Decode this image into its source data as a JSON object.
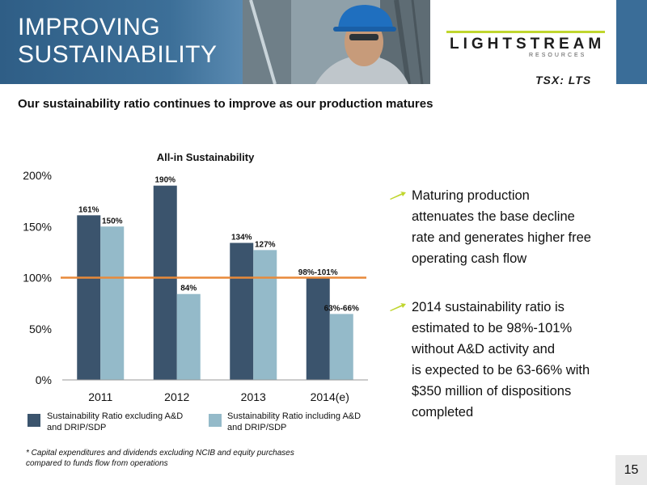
{
  "header": {
    "title_line1": "IMPROVING",
    "title_line2": "SUSTAINABILITY",
    "logo_name": "LIGHTSTREAM",
    "logo_sub": "RESOURCES",
    "ticker": "TSX: LTS"
  },
  "subtitle": "Our sustainability ratio continues to improve as our production matures",
  "chart_data": {
    "type": "bar",
    "title": "All-in Sustainability",
    "categories": [
      "2011",
      "2012",
      "2013",
      "2014(e)"
    ],
    "series": [
      {
        "name": "Sustainability  Ratio excluding A&D and DRIP/SDP",
        "values": [
          161,
          190,
          134,
          99.5
        ],
        "labels": [
          "161%",
          "190%",
          "134%",
          "98%-101%"
        ],
        "color": "#3b546d"
      },
      {
        "name": "Sustainability Ratio including A&D and DRIP/SDP",
        "values": [
          150,
          84,
          127,
          64.5
        ],
        "labels": [
          "150%",
          "84%",
          "127%",
          "63%-66%"
        ],
        "color": "#94bac9"
      }
    ],
    "reference_line": {
      "value": 100,
      "color": "#e8893a"
    },
    "yticks": [
      "0%",
      "50%",
      "100%",
      "150%",
      "200%"
    ],
    "ylim": [
      0,
      200
    ],
    "legend_position": "bottom",
    "grid": false
  },
  "legend": {
    "item1": "Sustainability  Ratio excluding A&D\nand DRIP/SDP",
    "item2": "Sustainability Ratio including A&D\nand DRIP/SDP"
  },
  "bullets": [
    {
      "icon": "arrow-bullet-icon",
      "text": "Maturing production\nattenuates the base decline\nrate and generates higher free\noperating cash flow"
    },
    {
      "icon": "arrow-bullet-icon",
      "text": "2014 sustainability ratio is\nestimated to be 98%-101%\nwithout  A&D activity and\nis expected to be 63-66% with\n$350 million of dispositions\ncompleted"
    }
  ],
  "footnote": "*  Capital expenditures and dividends excluding NCIB and equity purchases\n    compared to funds flow from operations",
  "page_number": "15",
  "colors": {
    "header_blue": "#3a6d98",
    "logo_accent": "#c0d62e"
  }
}
